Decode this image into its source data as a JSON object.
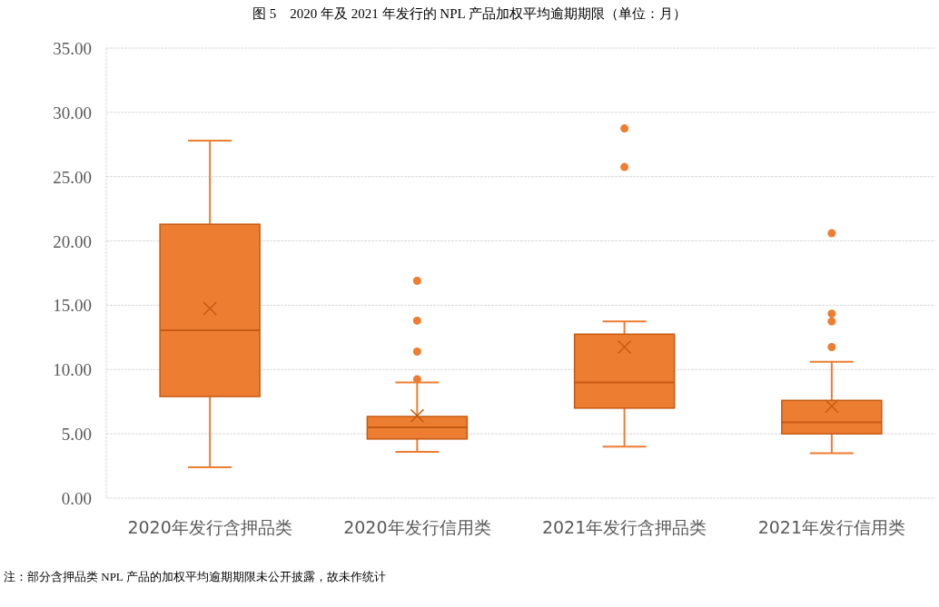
{
  "chart_data": {
    "type": "box",
    "title": "图 5　2020 年及 2021 年发行的 NPL 产品加权平均逾期期限（单位：月）",
    "categories": [
      "2020年发行含押品类",
      "2020年发行信用类",
      "2021年发行含押品类",
      "2021年发行信用类"
    ],
    "boxes": [
      {
        "low": 2.4,
        "q1": 7.9,
        "median": 13.05,
        "q3": 21.3,
        "high": 27.8,
        "mean": 14.75
      },
      {
        "low": 3.6,
        "q1": 4.6,
        "median": 5.5,
        "q3": 6.35,
        "high": 9.0,
        "mean": 6.4,
        "outliers": [
          9.25,
          11.4,
          13.8,
          16.9
        ]
      },
      {
        "low": 4.0,
        "q1": 7.0,
        "median": 9.0,
        "q3": 12.75,
        "high": 13.75,
        "mean": 11.75,
        "outliers": [
          25.75,
          28.75
        ]
      },
      {
        "low": 3.5,
        "q1": 5.0,
        "median": 5.9,
        "q3": 7.6,
        "high": 10.6,
        "mean": 7.15,
        "outliers": [
          11.75,
          13.75,
          14.35,
          20.6
        ]
      }
    ],
    "color": "#ed7d31",
    "ylim": [
      0,
      35
    ],
    "yticks": [
      {
        "value": 0,
        "label": "0.00"
      },
      {
        "value": 5,
        "label": "5.00"
      },
      {
        "value": 10,
        "label": "10.00"
      },
      {
        "value": 15,
        "label": "15.00"
      },
      {
        "value": 20,
        "label": "20.00"
      },
      {
        "value": 25,
        "label": "25.00"
      },
      {
        "value": 30,
        "label": "30.00"
      },
      {
        "value": 35,
        "label": "35.00"
      }
    ],
    "grid": "y",
    "annotations": [
      "注：部分含押品类 NPL 产品的加权平均逾期期限未公开披露，故未作统计"
    ]
  }
}
